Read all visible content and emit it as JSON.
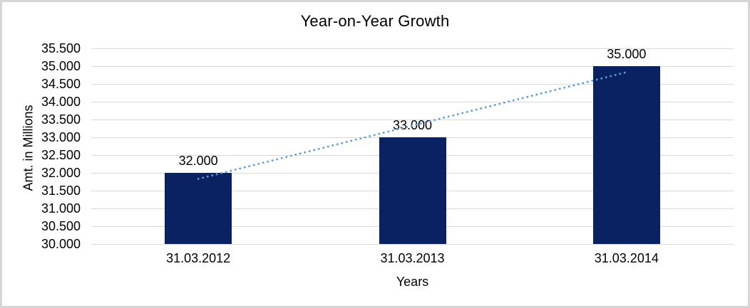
{
  "chart_data": {
    "type": "bar",
    "title": "Year-on-Year Growth",
    "xlabel": "Years",
    "ylabel": "Amt. in Millions",
    "categories": [
      "31.03.2012",
      "31.03.2013",
      "31.03.2014"
    ],
    "values": [
      32000,
      33000,
      35000
    ],
    "value_labels": [
      "32.000",
      "33.000",
      "35.000"
    ],
    "y_ticks": [
      "35.500",
      "35.000",
      "34.500",
      "34.000",
      "33.500",
      "33.000",
      "32.500",
      "32.000",
      "31.500",
      "31.000",
      "30.500",
      "30.000"
    ],
    "y_tick_step": 500,
    "ylim": [
      30000,
      35500
    ],
    "grid": true,
    "legend": "none",
    "trendline": {
      "style": "dotted",
      "y_start": 31830,
      "y_end": 34830,
      "color": "#5b9bd5"
    },
    "colors": {
      "bar": "#0a2262",
      "gridline": "#d9d9d9",
      "text": "#000000",
      "border": "#d6d6d6"
    }
  }
}
